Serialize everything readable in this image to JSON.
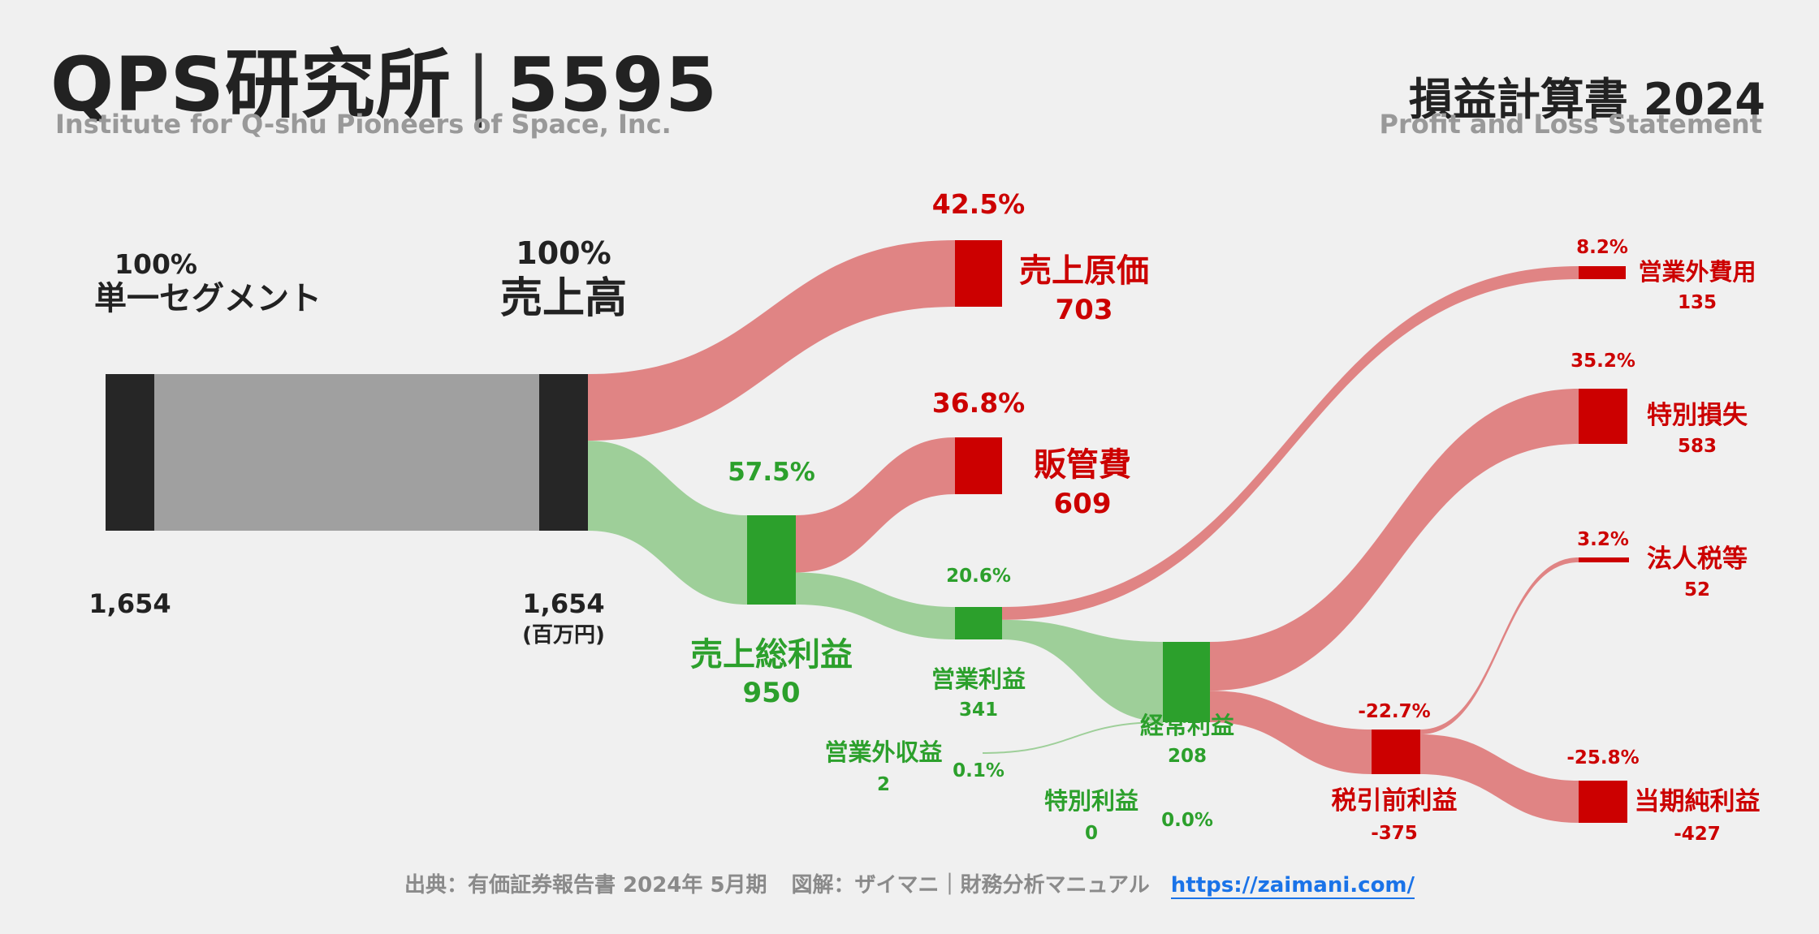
{
  "header": {
    "company": "QPS研究所",
    "code": "5595",
    "company_en": "Institute for Q-shu Pioneers of Space, Inc.",
    "statement": "損益計算書 2024",
    "statement_en": "Profit and Loss Statement"
  },
  "footer": {
    "source": "出典：有価証券報告書 2024年 5月期",
    "credit": "図解：ザイマニ｜財務分析マニュアル",
    "url": "https://zaimani.com/"
  },
  "colors": {
    "revenue": "#262626",
    "revenue_flow": "#a0a0a0",
    "profit": "#2ca02c",
    "profit_flow": "#9ecf99",
    "cost": "#cc0000",
    "cost_flow": "#e08484",
    "profit_text": "#2ca02c",
    "cost_text": "#cc0000"
  },
  "chart_data": {
    "type": "sankey",
    "unit": "(百万円)",
    "nodes": [
      {
        "id": "segment",
        "label": "単一セグメント",
        "value": "1,654",
        "pct": "100%",
        "kind": "revenue"
      },
      {
        "id": "revenue",
        "label": "売上高",
        "value": "1,654",
        "pct": "100%",
        "kind": "revenue"
      },
      {
        "id": "cogs",
        "label": "売上原価",
        "value": "703",
        "pct": "42.5%",
        "kind": "cost"
      },
      {
        "id": "gross",
        "label": "売上総利益",
        "value": "950",
        "pct": "57.5%",
        "kind": "profit"
      },
      {
        "id": "sga",
        "label": "販管費",
        "value": "609",
        "pct": "36.8%",
        "kind": "cost"
      },
      {
        "id": "opinc",
        "label": "営業利益",
        "value": "341",
        "pct": "20.6%",
        "kind": "profit"
      },
      {
        "id": "nonopinc",
        "label": "営業外収益",
        "value": "2",
        "pct": "0.1%",
        "kind": "profit"
      },
      {
        "id": "nonopexp",
        "label": "営業外費用",
        "value": "135",
        "pct": "8.2%",
        "kind": "cost"
      },
      {
        "id": "ordinary",
        "label": "経常利益",
        "value": "208",
        "pct": "",
        "kind": "profit"
      },
      {
        "id": "extgain",
        "label": "特別利益",
        "value": "0",
        "pct": "0.0%",
        "kind": "profit"
      },
      {
        "id": "extloss",
        "label": "特別損失",
        "value": "583",
        "pct": "35.2%",
        "kind": "cost"
      },
      {
        "id": "pretax",
        "label": "税引前利益",
        "value": "-375",
        "pct": "-22.7%",
        "kind": "cost"
      },
      {
        "id": "tax",
        "label": "法人税等",
        "value": "52",
        "pct": "3.2%",
        "kind": "cost"
      },
      {
        "id": "netinc",
        "label": "当期純利益",
        "value": "-427",
        "pct": "-25.8%",
        "kind": "cost"
      }
    ],
    "links": [
      {
        "source": "segment",
        "target": "revenue",
        "value": 1654,
        "kind": "revenue"
      },
      {
        "source": "revenue",
        "target": "cogs",
        "value": 703,
        "kind": "cost"
      },
      {
        "source": "revenue",
        "target": "gross",
        "value": 950,
        "kind": "profit"
      },
      {
        "source": "gross",
        "target": "sga",
        "value": 609,
        "kind": "cost"
      },
      {
        "source": "gross",
        "target": "opinc",
        "value": 341,
        "kind": "profit"
      },
      {
        "source": "opinc",
        "target": "nonopexp",
        "value": 135,
        "kind": "cost"
      },
      {
        "source": "opinc",
        "target": "ordinary",
        "value": 206,
        "kind": "profit"
      },
      {
        "source": "nonopinc",
        "target": "ordinary",
        "value": 2,
        "kind": "profit"
      },
      {
        "source": "ordinary",
        "target": "extloss",
        "value": 583,
        "kind": "cost"
      },
      {
        "source": "ordinary",
        "target": "pretax",
        "value": 375,
        "kind": "cost"
      },
      {
        "source": "pretax",
        "target": "tax",
        "value": 52,
        "kind": "cost"
      },
      {
        "source": "pretax",
        "target": "netinc",
        "value": 427,
        "kind": "cost"
      }
    ]
  }
}
